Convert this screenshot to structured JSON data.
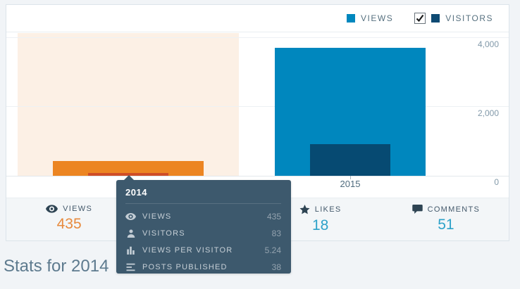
{
  "legend": {
    "views_label": "VIEWS",
    "visitors_label": "VISITORS",
    "views_color": "#0087be",
    "visitors_color": "#0e4a73",
    "visitors_checkbox_checked": true
  },
  "chart_data": {
    "type": "bar",
    "categories": [
      "2014",
      "2015"
    ],
    "series": [
      {
        "name": "Views",
        "values": [
          435,
          3700
        ],
        "colors": [
          "#ec8522",
          "#0087be"
        ]
      },
      {
        "name": "Visitors",
        "values": [
          83,
          920
        ],
        "colors": [
          "#cf4d27",
          "#064a72"
        ]
      }
    ],
    "ylim": [
      0,
      4000
    ],
    "yticks": [
      "4,000",
      "2,000",
      "0"
    ],
    "grid": "horizontal",
    "legend_position": "top-right",
    "highlighted_category": "2014",
    "highlight_color": "#fcf0e5"
  },
  "tooltip": {
    "title": "2014",
    "rows": [
      {
        "icon": "eye-icon",
        "label": "VIEWS",
        "value": "435"
      },
      {
        "icon": "person-icon",
        "label": "VISITORS",
        "value": "83"
      },
      {
        "icon": "bar-chart-icon",
        "label": "VIEWS PER VISITOR",
        "value": "5.24"
      },
      {
        "icon": "posts-icon",
        "label": "POSTS PUBLISHED",
        "value": "38"
      }
    ]
  },
  "stats_bar": {
    "views": {
      "label": "VIEWS",
      "value": "435",
      "color": "#e78a3d"
    },
    "likes": {
      "label": "LIKES",
      "value": "18",
      "color": "#2ea2c9"
    },
    "comments": {
      "label": "COMMENTS",
      "value": "51",
      "color": "#2ea2c9"
    }
  },
  "footer": {
    "heading": "Stats for 2014"
  }
}
